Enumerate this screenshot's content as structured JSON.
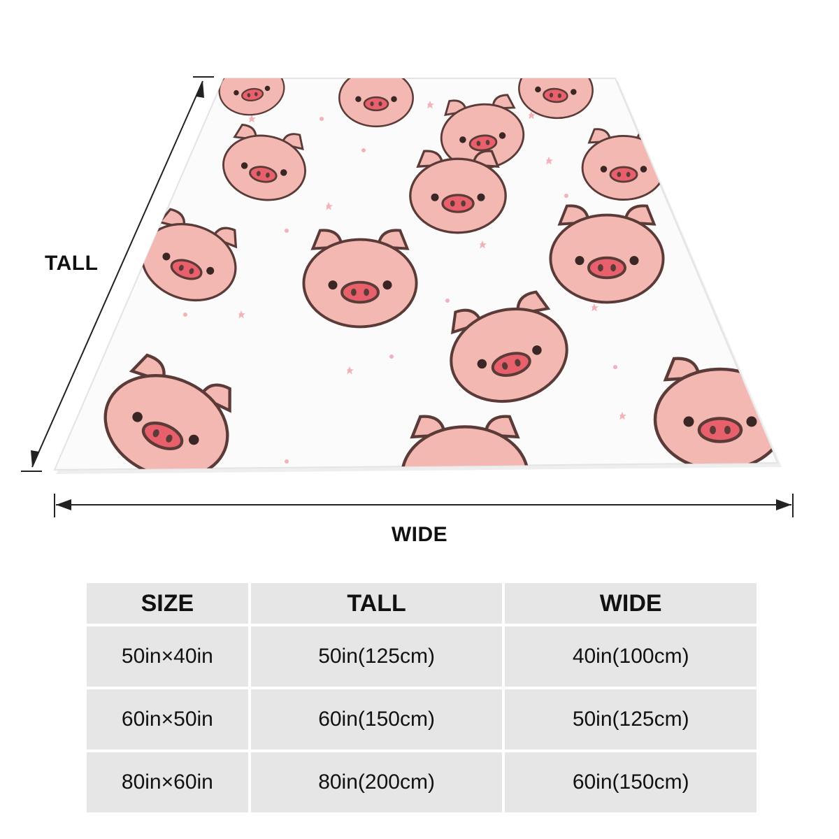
{
  "dimensions": {
    "tall_label": "TALL",
    "wide_label": "WIDE"
  },
  "table": {
    "headers": [
      "SIZE",
      "TALL",
      "WIDE"
    ],
    "rows": [
      [
        "50in×40in",
        "50in(125cm)",
        "40in(100cm)"
      ],
      [
        "60in×50in",
        "60in(150cm)",
        "50in(125cm)"
      ],
      [
        "80in×60in",
        "80in(200cm)",
        "60in(150cm)"
      ]
    ]
  },
  "colors": {
    "pig_pink": "#f4b8b3",
    "snout_pink": "#e8606b",
    "outline": "#5a3b38",
    "star_pink": "#f2b3b8",
    "table_bg": "#e6e6e6"
  }
}
